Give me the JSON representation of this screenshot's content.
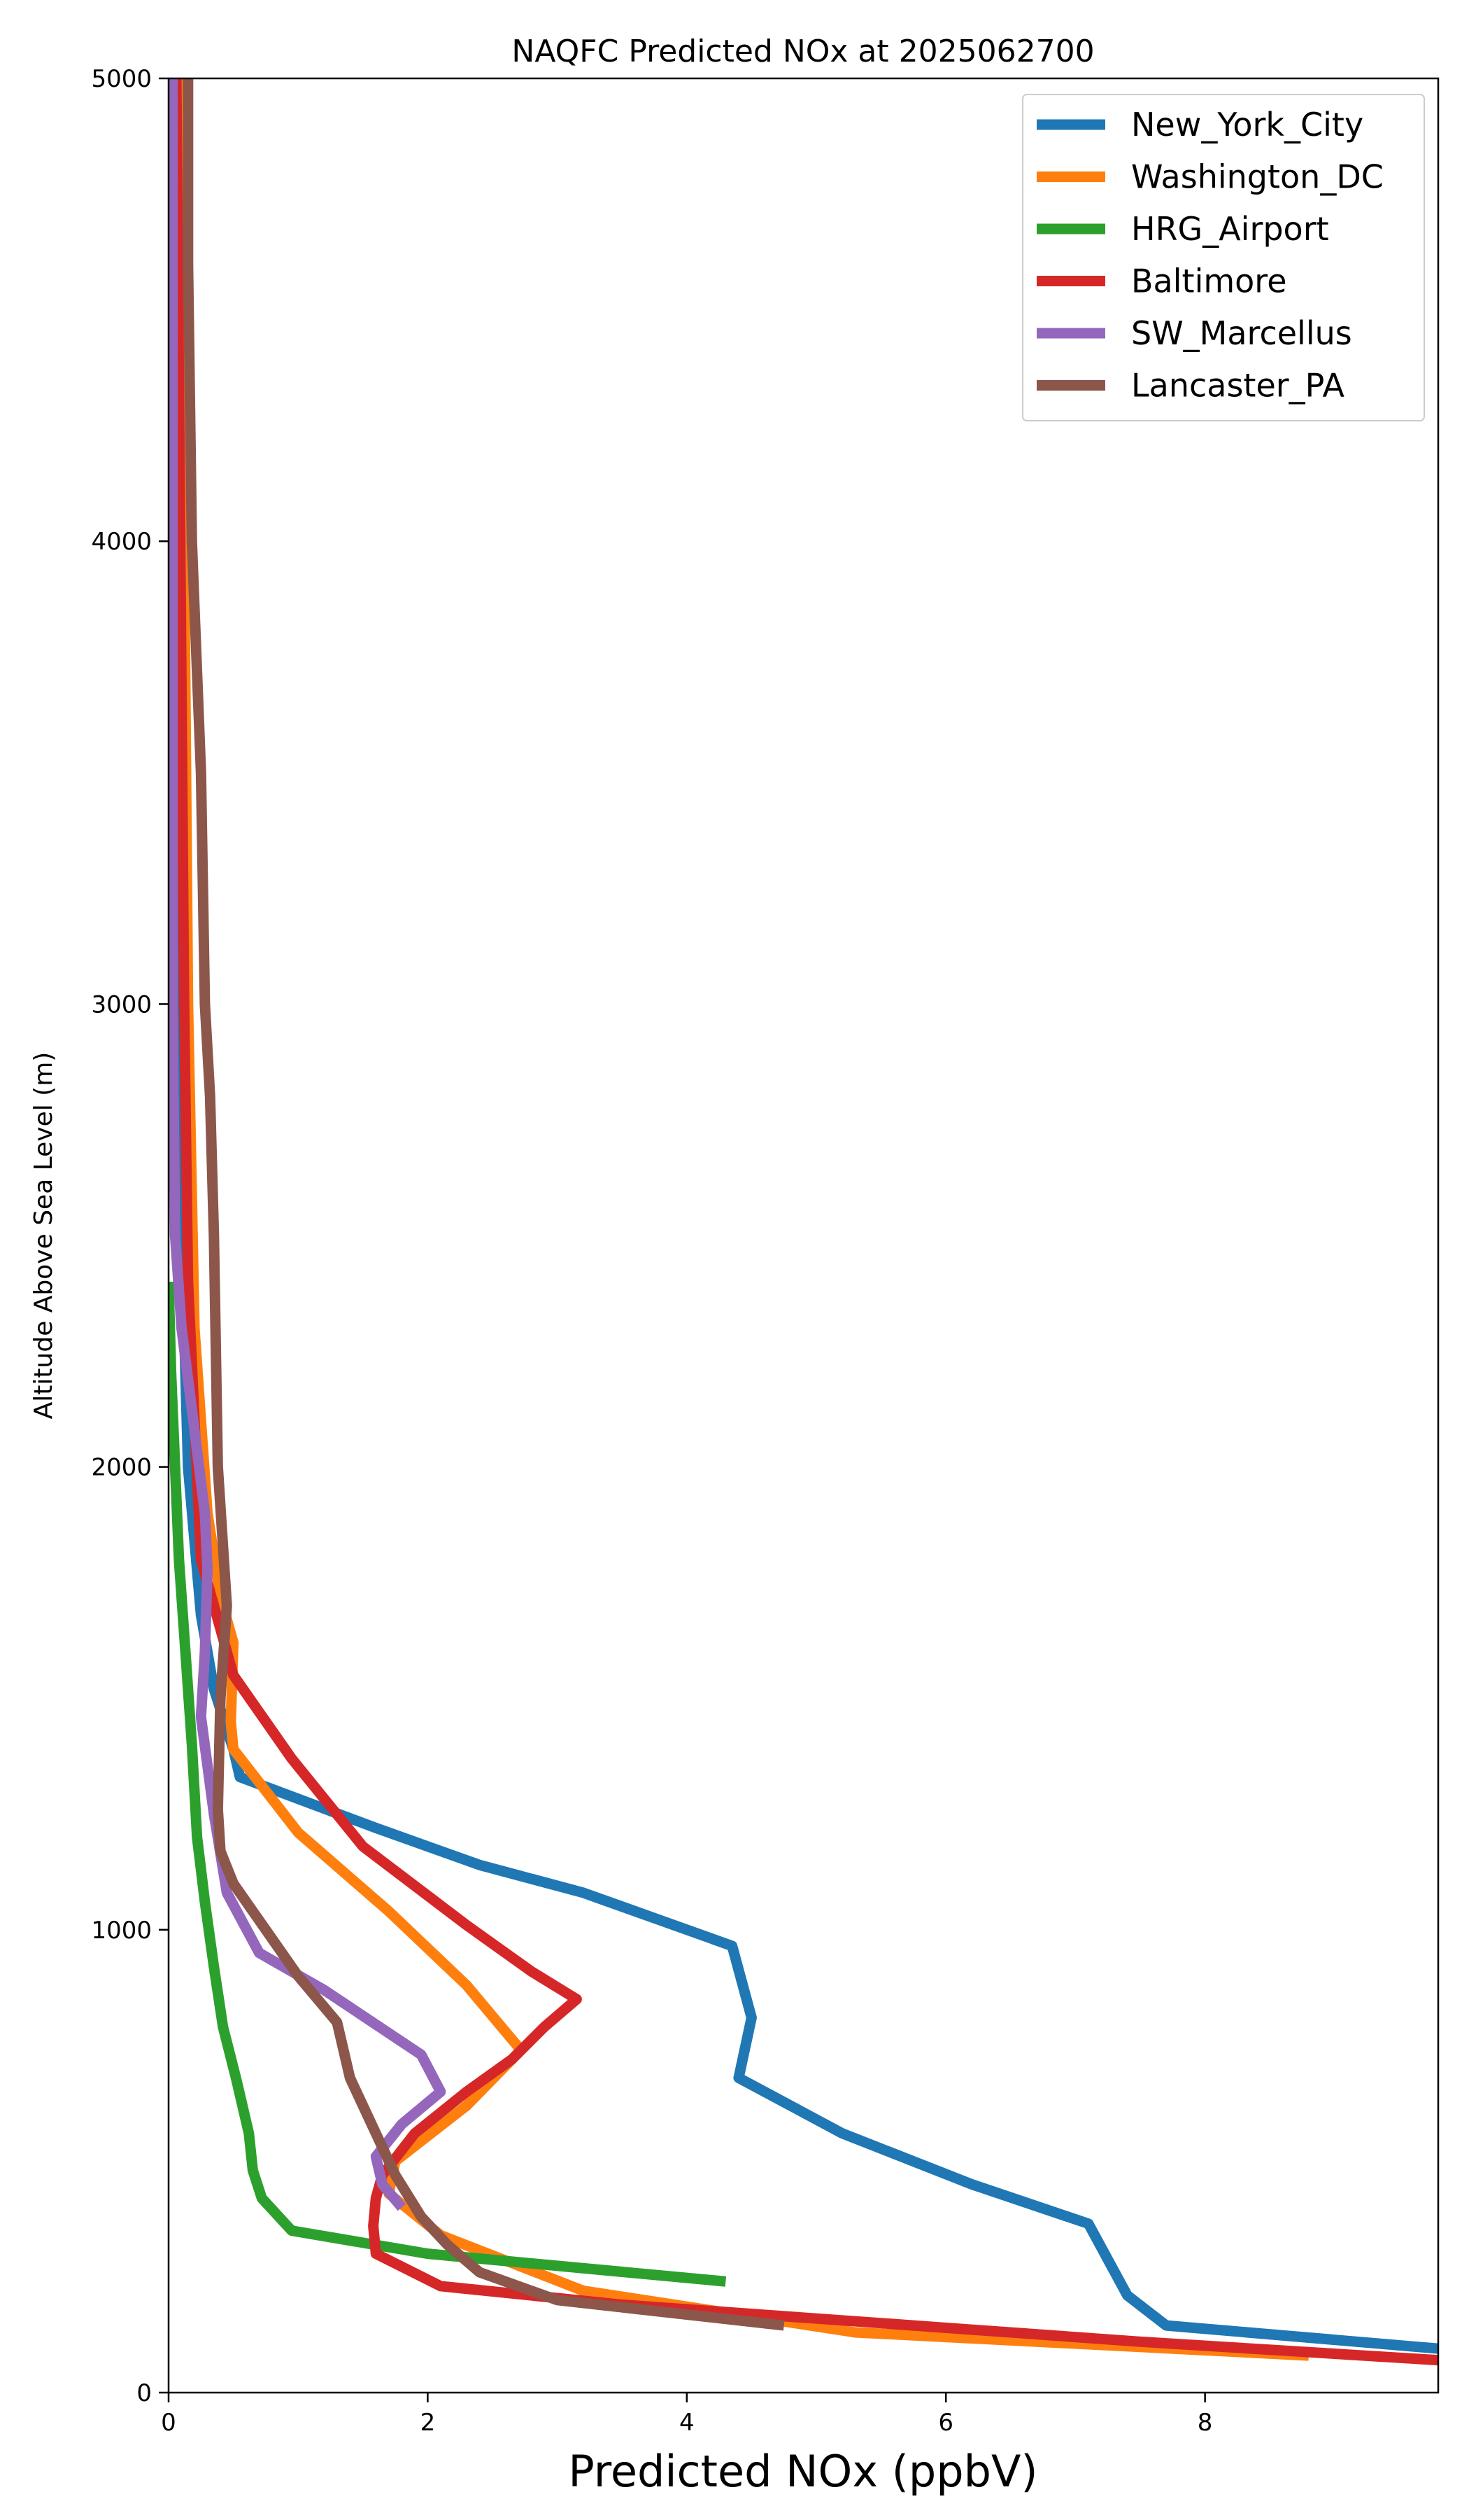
{
  "chart_data": {
    "type": "line",
    "title": "NAQFC Predicted NOx at 2025062700",
    "xlabel": "Predicted NOx (ppbV)",
    "ylabel": "Altitude Above Sea Level (m)",
    "xlim": [
      0,
      9.8
    ],
    "ylim": [
      0,
      5000
    ],
    "xticks": [
      0,
      2,
      4,
      6,
      8
    ],
    "yticks": [
      0,
      1000,
      2000,
      3000,
      4000,
      5000
    ],
    "legend_position": "top-right",
    "grid": false,
    "series": [
      {
        "name": "New_York_City",
        "color": "#1f77b4",
        "points": [
          [
            9.8,
            95
          ],
          [
            7.7,
            145
          ],
          [
            7.4,
            210
          ],
          [
            7.1,
            365
          ],
          [
            6.2,
            450
          ],
          [
            5.2,
            560
          ],
          [
            4.4,
            680
          ],
          [
            4.5,
            810
          ],
          [
            4.35,
            965
          ],
          [
            3.2,
            1080
          ],
          [
            2.4,
            1140
          ],
          [
            1.6,
            1220
          ],
          [
            0.55,
            1330
          ],
          [
            0.5,
            1390
          ],
          [
            0.35,
            1520
          ],
          [
            0.25,
            1680
          ],
          [
            0.15,
            2000
          ],
          [
            0.1,
            2500
          ],
          [
            0.08,
            3000
          ],
          [
            0.08,
            4000
          ],
          [
            0.07,
            5000
          ]
        ]
      },
      {
        "name": "Washington_DC",
        "color": "#ff7f0e",
        "points": [
          [
            8.8,
            80
          ],
          [
            5.3,
            130
          ],
          [
            3.2,
            220
          ],
          [
            2.1,
            340
          ],
          [
            1.7,
            430
          ],
          [
            1.75,
            500
          ],
          [
            2.3,
            620
          ],
          [
            2.72,
            740
          ],
          [
            2.6,
            780
          ],
          [
            2.3,
            880
          ],
          [
            1.7,
            1040
          ],
          [
            1.0,
            1210
          ],
          [
            0.5,
            1390
          ],
          [
            0.48,
            1450
          ],
          [
            0.5,
            1620
          ],
          [
            0.4,
            1720
          ],
          [
            0.3,
            1900
          ],
          [
            0.2,
            2300
          ],
          [
            0.15,
            3000
          ],
          [
            0.12,
            4000
          ],
          [
            0.1,
            5000
          ]
        ]
      },
      {
        "name": "HRG_Airport",
        "color": "#2ca02c",
        "points": [
          [
            4.3,
            240
          ],
          [
            2.0,
            300
          ],
          [
            0.95,
            350
          ],
          [
            0.72,
            420
          ],
          [
            0.65,
            480
          ],
          [
            0.62,
            560
          ],
          [
            0.52,
            680
          ],
          [
            0.42,
            790
          ],
          [
            0.35,
            920
          ],
          [
            0.28,
            1060
          ],
          [
            0.22,
            1200
          ],
          [
            0.18,
            1400
          ],
          [
            0.13,
            1600
          ],
          [
            0.08,
            1800
          ],
          [
            0.05,
            2000
          ],
          [
            0.02,
            2200
          ],
          [
            0.0,
            2400
          ]
        ]
      },
      {
        "name": "Baltimore",
        "color": "#d62728",
        "points": [
          [
            9.8,
            70
          ],
          [
            7.5,
            110
          ],
          [
            5.0,
            160
          ],
          [
            3.5,
            190
          ],
          [
            2.1,
            230
          ],
          [
            1.6,
            300
          ],
          [
            1.58,
            360
          ],
          [
            1.6,
            420
          ],
          [
            1.65,
            470
          ],
          [
            1.9,
            560
          ],
          [
            2.3,
            650
          ],
          [
            2.65,
            720
          ],
          [
            2.9,
            790
          ],
          [
            3.15,
            850
          ],
          [
            2.8,
            910
          ],
          [
            2.3,
            1010
          ],
          [
            1.5,
            1180
          ],
          [
            0.95,
            1370
          ],
          [
            0.5,
            1550
          ],
          [
            0.25,
            1800
          ],
          [
            0.15,
            2400
          ],
          [
            0.12,
            3000
          ],
          [
            0.09,
            4000
          ],
          [
            0.06,
            5000
          ]
        ]
      },
      {
        "name": "SW_Marcellus",
        "color": "#9467bd",
        "points": [
          [
            1.8,
            400
          ],
          [
            1.65,
            450
          ],
          [
            1.6,
            510
          ],
          [
            1.8,
            580
          ],
          [
            2.1,
            650
          ],
          [
            1.95,
            730
          ],
          [
            1.2,
            870
          ],
          [
            0.7,
            950
          ],
          [
            0.45,
            1080
          ],
          [
            0.35,
            1250
          ],
          [
            0.25,
            1460
          ],
          [
            0.28,
            1600
          ],
          [
            0.3,
            1780
          ],
          [
            0.28,
            1900
          ],
          [
            0.2,
            2080
          ],
          [
            0.1,
            2300
          ],
          [
            0.05,
            2500
          ],
          [
            0.03,
            3000
          ],
          [
            0.03,
            4000
          ],
          [
            0.03,
            5000
          ]
        ]
      },
      {
        "name": "Lancaster_PA",
        "color": "#8c564b",
        "points": [
          [
            4.75,
            145
          ],
          [
            3.0,
            200
          ],
          [
            2.4,
            260
          ],
          [
            2.15,
            320
          ],
          [
            1.95,
            380
          ],
          [
            1.75,
            470
          ],
          [
            1.65,
            530
          ],
          [
            1.55,
            590
          ],
          [
            1.4,
            680
          ],
          [
            1.3,
            800
          ],
          [
            1.0,
            900
          ],
          [
            0.5,
            1100
          ],
          [
            0.4,
            1170
          ],
          [
            0.38,
            1260
          ],
          [
            0.4,
            1500
          ],
          [
            0.45,
            1700
          ],
          [
            0.38,
            2000
          ],
          [
            0.35,
            2500
          ],
          [
            0.32,
            2800
          ],
          [
            0.28,
            3000
          ],
          [
            0.25,
            3500
          ],
          [
            0.18,
            4000
          ],
          [
            0.15,
            4600
          ],
          [
            0.15,
            5000
          ]
        ]
      }
    ]
  }
}
